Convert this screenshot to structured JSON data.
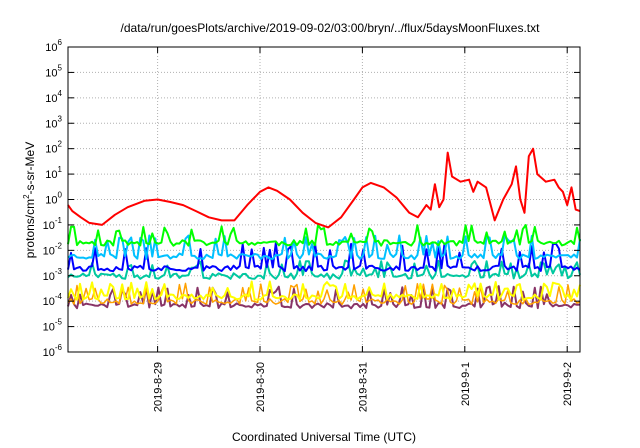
{
  "chart_data": {
    "type": "line",
    "title": "/data/run/goesPlots/archive/2019-09-02/03:00/bryn/../flux/5daysMoonFluxes.txt",
    "xlabel": "Coordinated Universal Time (UTC)",
    "ylabel": {
      "base": "protons/cm",
      "sup": "2",
      "rest": "-s-sr-MeV"
    },
    "y_scale": "log",
    "y_range_exponent": [
      -6,
      6
    ],
    "y_ticks": [
      {
        "base": "10",
        "exp": "-6",
        "value": -6
      },
      {
        "base": "10",
        "exp": "-5",
        "value": -5
      },
      {
        "base": "10",
        "exp": "-4",
        "value": -4
      },
      {
        "base": "10",
        "exp": "-3",
        "value": -3
      },
      {
        "base": "10",
        "exp": "-2",
        "value": -2
      },
      {
        "base": "10",
        "exp": "-1",
        "value": -1
      },
      {
        "base": "10",
        "exp": "0",
        "value": 0
      },
      {
        "base": "10",
        "exp": "1",
        "value": 1
      },
      {
        "base": "10",
        "exp": "2",
        "value": 2
      },
      {
        "base": "10",
        "exp": "3",
        "value": 3
      },
      {
        "base": "10",
        "exp": "4",
        "value": 4
      },
      {
        "base": "10",
        "exp": "5",
        "value": 5
      },
      {
        "base": "10",
        "exp": "6",
        "value": 6
      }
    ],
    "x_range": [
      "2019-08-28 03:00",
      "2019-09-02 03:00"
    ],
    "x_ticks": [
      {
        "label": "2019-8-29",
        "date": "2019-08-29 00:00"
      },
      {
        "label": "2019-8-30",
        "date": "2019-08-30 00:00"
      },
      {
        "label": "2019-8-31",
        "date": "2019-08-31 00:00"
      },
      {
        "label": "2019-9-1",
        "date": "2019-09-01 00:00"
      },
      {
        "label": "2019-9-2",
        "date": "2019-09-02 00:00"
      }
    ],
    "grid": true,
    "legend": "none",
    "series": [
      {
        "color": "#ff0000",
        "width": 2,
        "points": [
          [
            "2019-08-28 03:00",
            0.6
          ],
          [
            "2019-08-28 04:00",
            0.35
          ],
          [
            "2019-08-28 06:00",
            0.2
          ],
          [
            "2019-08-28 08:00",
            0.12
          ],
          [
            "2019-08-28 11:00",
            0.1
          ],
          [
            "2019-08-28 14:00",
            0.25
          ],
          [
            "2019-08-28 17:00",
            0.5
          ],
          [
            "2019-08-28 21:00",
            0.9
          ],
          [
            "2019-08-29 00:00",
            1.0
          ],
          [
            "2019-08-29 03:00",
            0.8
          ],
          [
            "2019-08-29 06:00",
            0.6
          ],
          [
            "2019-08-29 09:00",
            0.35
          ],
          [
            "2019-08-29 12:00",
            0.2
          ],
          [
            "2019-08-29 15:00",
            0.15
          ],
          [
            "2019-08-29 18:00",
            0.15
          ],
          [
            "2019-08-29 21:00",
            0.6
          ],
          [
            "2019-08-30 00:00",
            2.0
          ],
          [
            "2019-08-30 02:00",
            3.0
          ],
          [
            "2019-08-30 04:00",
            2.2
          ],
          [
            "2019-08-30 07:00",
            1.0
          ],
          [
            "2019-08-30 10:00",
            0.3
          ],
          [
            "2019-08-30 13:00",
            0.12
          ],
          [
            "2019-08-30 16:00",
            0.08
          ],
          [
            "2019-08-30 19:00",
            0.2
          ],
          [
            "2019-08-30 22:00",
            1.0
          ],
          [
            "2019-08-31 00:00",
            3.0
          ],
          [
            "2019-08-31 02:00",
            4.5
          ],
          [
            "2019-08-31 05:00",
            3.0
          ],
          [
            "2019-08-31 08:00",
            1.2
          ],
          [
            "2019-08-31 11:00",
            0.3
          ],
          [
            "2019-08-31 13:00",
            0.2
          ],
          [
            "2019-08-31 15:00",
            0.6
          ],
          [
            "2019-08-31 16:00",
            0.4
          ],
          [
            "2019-08-31 17:00",
            4.0
          ],
          [
            "2019-08-31 18:00",
            0.5
          ],
          [
            "2019-08-31 19:00",
            1.0
          ],
          [
            "2019-08-31 20:00",
            70
          ],
          [
            "2019-08-31 21:00",
            8
          ],
          [
            "2019-08-31 23:00",
            5
          ],
          [
            "2019-09-01 01:00",
            6
          ],
          [
            "2019-09-01 02:00",
            2
          ],
          [
            "2019-09-01 03:00",
            5
          ],
          [
            "2019-09-01 05:00",
            3
          ],
          [
            "2019-09-01 07:00",
            0.15
          ],
          [
            "2019-09-01 09:00",
            1.0
          ],
          [
            "2019-09-01 11:00",
            4
          ],
          [
            "2019-09-01 12:00",
            20
          ],
          [
            "2019-09-01 13:00",
            1.0
          ],
          [
            "2019-09-01 14:00",
            0.3
          ],
          [
            "2019-09-01 15:00",
            50
          ],
          [
            "2019-09-01 16:00",
            100
          ],
          [
            "2019-09-01 17:00",
            10
          ],
          [
            "2019-09-01 19:00",
            5
          ],
          [
            "2019-09-01 21:00",
            6
          ],
          [
            "2019-09-01 22:00",
            3
          ],
          [
            "2019-09-01 23:00",
            2
          ],
          [
            "2019-09-02 00:00",
            0.6
          ],
          [
            "2019-09-02 01:00",
            3
          ],
          [
            "2019-09-02 02:00",
            0.4
          ],
          [
            "2019-09-02 03:00",
            0.35
          ]
        ]
      },
      {
        "color": "#00ff00",
        "width": 2,
        "base": 0.02,
        "amp": 0.1,
        "seed": 11
      },
      {
        "color": "#00c0ff",
        "width": 2,
        "base": 0.006,
        "amp": 0.04,
        "seed": 23
      },
      {
        "color": "#0000ff",
        "width": 2,
        "base": 0.002,
        "amp": 0.02,
        "seed": 37
      },
      {
        "color": "#00c8a0",
        "width": 2,
        "base": 0.001,
        "amp": 0.004,
        "seed": 51
      },
      {
        "color": "#ffff00",
        "width": 2,
        "base": 0.00015,
        "amp": 0.0006,
        "seed": 67
      },
      {
        "color": "#ffa000",
        "width": 1.5,
        "base": 0.0001,
        "amp": 0.0005,
        "seed": 79
      },
      {
        "color": "#883366",
        "width": 2,
        "base": 7e-05,
        "amp": 0.0004,
        "seed": 91
      }
    ]
  }
}
